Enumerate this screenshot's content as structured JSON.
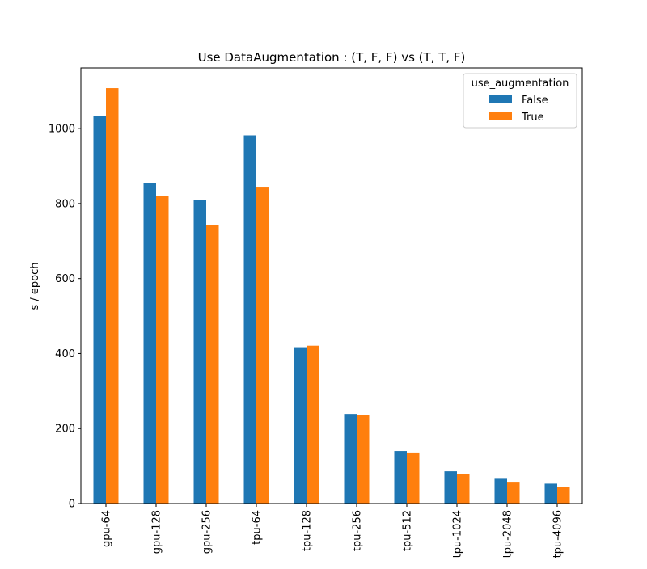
{
  "chart_data": {
    "type": "bar",
    "title": "Use DataAugmentation : (T, F, F) vs (T, T, F)",
    "xlabel": "",
    "ylabel": "s / epoch",
    "ylim": [
      0,
      1162
    ],
    "yticks": [
      0,
      200,
      400,
      600,
      800,
      1000
    ],
    "grid": false,
    "legend": {
      "title": "use_augmentation",
      "placement": "top-right"
    },
    "categories": [
      "gpu-64",
      "gpu-128",
      "gpu-256",
      "tpu-64",
      "tpu-128",
      "tpu-256",
      "tpu-512",
      "tpu-1024",
      "tpu-2048",
      "tpu-4096"
    ],
    "series": [
      {
        "name": "False",
        "color": "#1f77b4",
        "values": [
          1034,
          855,
          810,
          982,
          417,
          239,
          140,
          86,
          66,
          53
        ]
      },
      {
        "name": "True",
        "color": "#ff7f0e",
        "values": [
          1108,
          821,
          742,
          845,
          421,
          235,
          136,
          79,
          58,
          44
        ]
      }
    ]
  }
}
